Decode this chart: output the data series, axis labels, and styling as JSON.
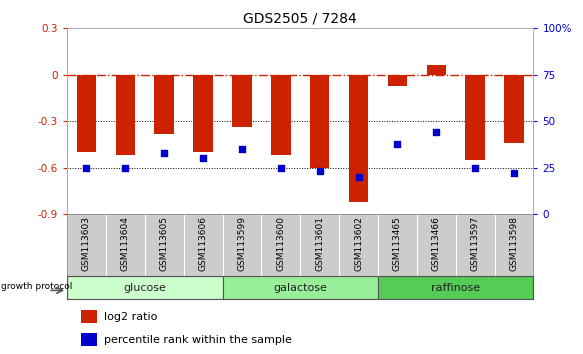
{
  "title": "GDS2505 / 7284",
  "samples": [
    "GSM113603",
    "GSM113604",
    "GSM113605",
    "GSM113606",
    "GSM113599",
    "GSM113600",
    "GSM113601",
    "GSM113602",
    "GSM113465",
    "GSM113466",
    "GSM113597",
    "GSM113598"
  ],
  "log2_ratio": [
    -0.5,
    -0.52,
    -0.38,
    -0.5,
    -0.34,
    -0.52,
    -0.6,
    -0.82,
    -0.07,
    0.06,
    -0.55,
    -0.44
  ],
  "percentile_rank": [
    25,
    25,
    33,
    30,
    35,
    25,
    23,
    20,
    38,
    44,
    25,
    22
  ],
  "groups": [
    {
      "label": "glucose",
      "start": 0,
      "end": 4,
      "color": "#ccffcc"
    },
    {
      "label": "galactose",
      "start": 4,
      "end": 8,
      "color": "#99ee99"
    },
    {
      "label": "raffinose",
      "start": 8,
      "end": 12,
      "color": "#55cc55"
    }
  ],
  "ylim_left": [
    -0.9,
    0.3
  ],
  "ylim_right": [
    0,
    100
  ],
  "bar_color": "#cc2200",
  "dot_color": "#0000cc",
  "hline_color": "#cc2200",
  "dotline_color": "#555555",
  "label_bg_color": "#cccccc",
  "growth_protocol_label": "growth protocol",
  "legend_log2": "log2 ratio",
  "legend_pct": "percentile rank within the sample",
  "title_fontsize": 10,
  "tick_fontsize": 7.5,
  "sample_fontsize": 6.5,
  "group_fontsize": 8,
  "legend_fontsize": 8
}
